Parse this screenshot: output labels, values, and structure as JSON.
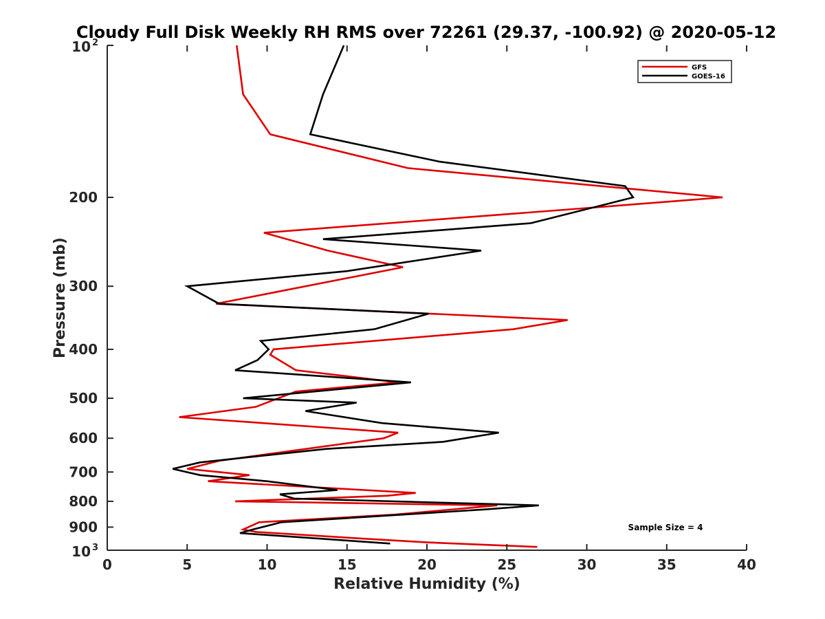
{
  "chart_data": {
    "type": "line",
    "title": "Cloudy Full Disk Weekly RH RMS over 72261 (29.37, -100.92) @ 2020-05-12",
    "xlabel": "Relative Humidity (%)",
    "ylabel": "Pressure (mb)",
    "xlim": [
      0,
      40
    ],
    "ylim": [
      100,
      1000
    ],
    "yscale": "log",
    "y_reversed": true,
    "grid": false,
    "legend_position": "top-right",
    "x_ticks": [
      0,
      5,
      10,
      15,
      20,
      25,
      30,
      35,
      40
    ],
    "y_ticks": [
      {
        "value": 100,
        "base": "10",
        "exp": "2"
      },
      {
        "value": 200,
        "label": "200"
      },
      {
        "value": 300,
        "label": "300"
      },
      {
        "value": 400,
        "label": "400"
      },
      {
        "value": 500,
        "label": "500"
      },
      {
        "value": 600,
        "label": "600"
      },
      {
        "value": 700,
        "label": "700"
      },
      {
        "value": 800,
        "label": "800"
      },
      {
        "value": 900,
        "label": "900"
      },
      {
        "value": 1000,
        "base": "10",
        "exp": "3"
      }
    ],
    "annotation": "Sample Size = 4",
    "series": [
      {
        "name": "GFS",
        "color": "#e00000",
        "points": [
          [
            8.1,
            100
          ],
          [
            8.5,
            125
          ],
          [
            10.2,
            150
          ],
          [
            18.8,
            175
          ],
          [
            38.5,
            200
          ],
          [
            30.0,
            210
          ],
          [
            9.8,
            235
          ],
          [
            13.8,
            255
          ],
          [
            18.5,
            275
          ],
          [
            6.8,
            325
          ],
          [
            28.8,
            350
          ],
          [
            25.4,
            365
          ],
          [
            10.4,
            400
          ],
          [
            10.2,
            410
          ],
          [
            11.8,
            440
          ],
          [
            18.2,
            465
          ],
          [
            11.8,
            485
          ],
          [
            9.3,
            520
          ],
          [
            4.5,
            545
          ],
          [
            18.2,
            585
          ],
          [
            17.3,
            600
          ],
          [
            7.0,
            665
          ],
          [
            5.0,
            690
          ],
          [
            8.9,
            710
          ],
          [
            6.3,
            730
          ],
          [
            19.3,
            770
          ],
          [
            17.5,
            780
          ],
          [
            8.0,
            800
          ],
          [
            24.4,
            815
          ],
          [
            18.0,
            850
          ],
          [
            9.5,
            880
          ],
          [
            8.5,
            910
          ],
          [
            9.3,
            920
          ],
          [
            16.3,
            950
          ],
          [
            20.0,
            965
          ],
          [
            26.9,
            985
          ]
        ]
      },
      {
        "name": "GOES-16",
        "color": "#000000",
        "points": [
          [
            14.8,
            100
          ],
          [
            13.5,
            125
          ],
          [
            12.7,
            150
          ],
          [
            20.8,
            170
          ],
          [
            32.4,
            190
          ],
          [
            32.9,
            200
          ],
          [
            26.5,
            225
          ],
          [
            13.5,
            242
          ],
          [
            23.4,
            255
          ],
          [
            15.0,
            280
          ],
          [
            5.0,
            300
          ],
          [
            7.0,
            325
          ],
          [
            20.1,
            340
          ],
          [
            16.7,
            365
          ],
          [
            9.6,
            385
          ],
          [
            10.1,
            400
          ],
          [
            9.4,
            420
          ],
          [
            8.0,
            440
          ],
          [
            19.0,
            465
          ],
          [
            8.5,
            500
          ],
          [
            15.6,
            510
          ],
          [
            12.4,
            530
          ],
          [
            17.2,
            560
          ],
          [
            24.5,
            585
          ],
          [
            21.0,
            610
          ],
          [
            13.7,
            630
          ],
          [
            5.8,
            670
          ],
          [
            4.1,
            690
          ],
          [
            5.8,
            710
          ],
          [
            10.0,
            730
          ],
          [
            14.4,
            760
          ],
          [
            10.8,
            775
          ],
          [
            11.7,
            790
          ],
          [
            27.0,
            815
          ],
          [
            23.7,
            830
          ],
          [
            10.9,
            880
          ],
          [
            9.1,
            910
          ],
          [
            8.3,
            925
          ],
          [
            17.7,
            970
          ]
        ]
      }
    ]
  }
}
